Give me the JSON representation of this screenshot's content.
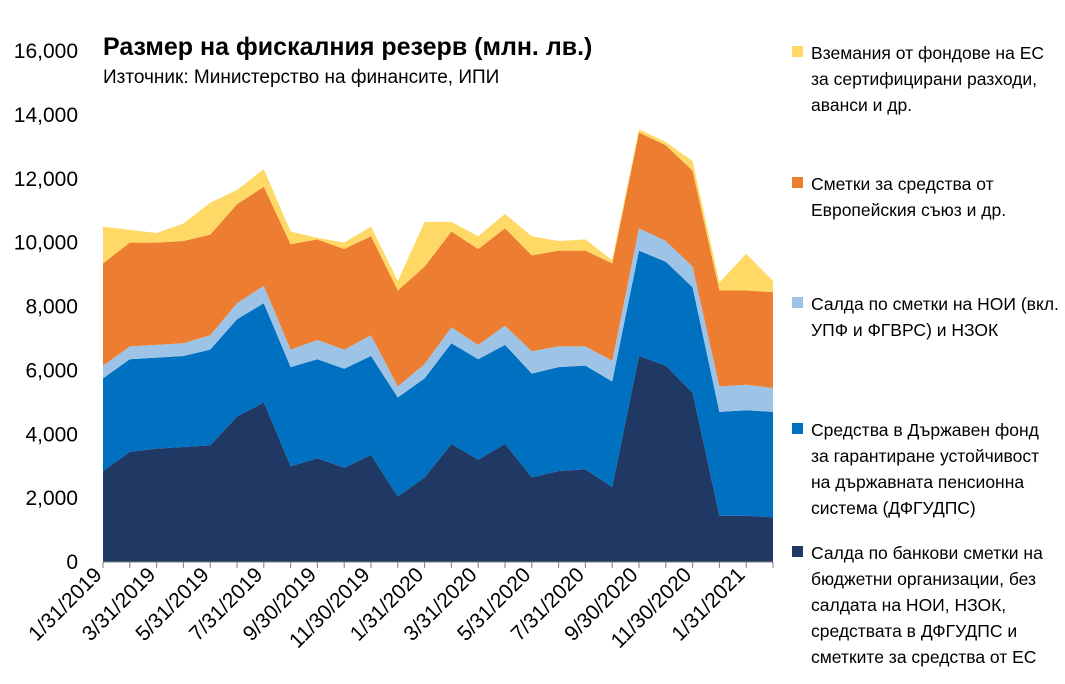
{
  "chart_data": {
    "type": "area",
    "stacked": true,
    "title": "Размер на фискалния резерв (млн. лв.)",
    "subtitle": "Източник: Министерство на финансите, ИПИ",
    "x_tick_labels": [
      "1/31/2019",
      "3/31/2019",
      "5/31/2019",
      "7/31/2019",
      "9/30/2019",
      "11/30/2019",
      "1/31/2020",
      "3/31/2020",
      "5/31/2020",
      "7/31/2020",
      "9/30/2020",
      "11/30/2020",
      "1/31/2021"
    ],
    "x": [
      "1/31/2019",
      "2/28/2019",
      "3/31/2019",
      "4/30/2019",
      "5/31/2019",
      "6/30/2019",
      "7/31/2019",
      "8/31/2019",
      "9/30/2019",
      "10/31/2019",
      "11/30/2019",
      "12/31/2019",
      "1/31/2020",
      "2/29/2020",
      "3/31/2020",
      "4/30/2020",
      "5/31/2020",
      "6/30/2020",
      "7/31/2020",
      "8/31/2020",
      "9/30/2020",
      "10/31/2020",
      "11/30/2020",
      "12/31/2020",
      "1/31/2021",
      "2/28/2021"
    ],
    "ylim": [
      0,
      16000
    ],
    "y_ticks": [
      0,
      2000,
      4000,
      6000,
      8000,
      10000,
      12000,
      14000,
      16000
    ],
    "y_tick_labels": [
      "0",
      "2,000",
      "4,000",
      "6,000",
      "8,000",
      "10,000",
      "12,000",
      "14,000",
      "16,000"
    ],
    "legend_position": "right",
    "series": [
      {
        "name": "Салда по банкови сметки на бюджетни организации, без салдата на НОИ, НЗОК, средствата в ДФГУДПС и сметките за средства от ЕС",
        "color": "#203864",
        "values": [
          2850,
          3450,
          3550,
          3600,
          3650,
          4550,
          5000,
          3000,
          3250,
          2950,
          3350,
          2050,
          2650,
          3700,
          3200,
          3700,
          2650,
          2850,
          2900,
          2350,
          6450,
          6150,
          5300,
          1450,
          1450,
          1400
        ]
      },
      {
        "name": "Средства в Държавен фонд за гарантиране устойчивост на държавната пенсионна система (ДФГУДПС)",
        "color": "#0070C0",
        "values": [
          2900,
          2900,
          2850,
          2850,
          3000,
          3050,
          3100,
          3100,
          3100,
          3100,
          3100,
          3100,
          3100,
          3150,
          3150,
          3100,
          3250,
          3250,
          3250,
          3300,
          3300,
          3250,
          3300,
          3250,
          3300,
          3300
        ]
      },
      {
        "name": "Салда по сметки на НОИ (вкл. УПФ и ФГВРС) и НЗОК",
        "color": "#9DC3E6",
        "values": [
          400,
          400,
          400,
          400,
          450,
          500,
          550,
          550,
          600,
          600,
          650,
          350,
          450,
          500,
          450,
          600,
          700,
          650,
          600,
          650,
          700,
          650,
          650,
          800,
          800,
          750
        ]
      },
      {
        "name": "Сметки за средства от Европейския съюз и др.",
        "color": "#ED7D31",
        "values": [
          3200,
          3250,
          3200,
          3200,
          3150,
          3100,
          3100,
          3300,
          3150,
          3150,
          3100,
          3000,
          3050,
          3000,
          3000,
          3050,
          3000,
          3000,
          3000,
          3050,
          3000,
          3000,
          3000,
          3000,
          2950,
          3000
        ]
      },
      {
        "name": "Вземания от фондове на ЕС за сертифицирани разходи, аванси и др.",
        "color": "#FFD966",
        "values": [
          1150,
          400,
          300,
          550,
          1000,
          450,
          550,
          400,
          50,
          200,
          300,
          300,
          1400,
          300,
          400,
          450,
          600,
          300,
          350,
          100,
          100,
          100,
          300,
          250,
          1150,
          350
        ]
      }
    ]
  }
}
